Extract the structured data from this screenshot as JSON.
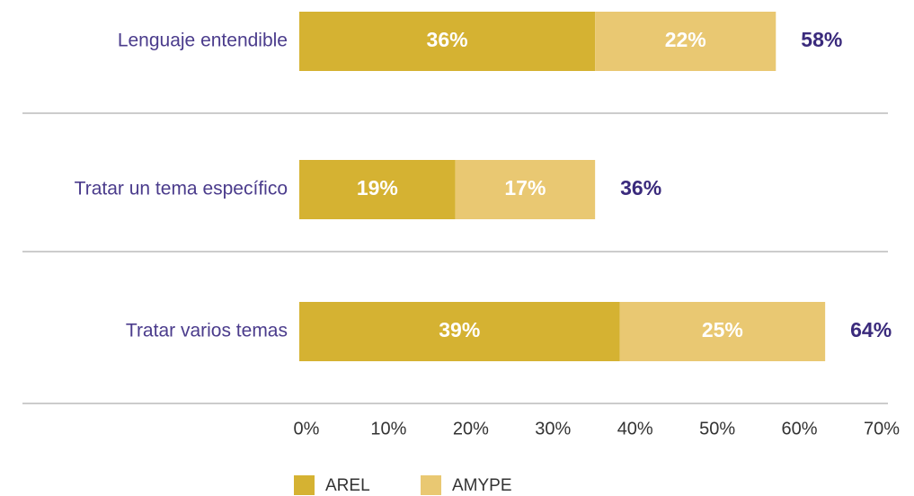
{
  "chart_data": {
    "type": "stacked-bar-horizontal",
    "categories": [
      "Lenguaje entendible",
      "Tratar un tema específico",
      "Tratar varios temas"
    ],
    "series": [
      {
        "name": "AREL",
        "color": "#d5b232",
        "values": [
          36,
          19,
          39
        ],
        "value_labels": [
          "36%",
          "19%",
          "39%"
        ]
      },
      {
        "name": "AMYPE",
        "color": "#e9c872",
        "values": [
          22,
          17,
          25
        ],
        "value_labels": [
          "22%",
          "17%",
          "25%"
        ]
      }
    ],
    "totals": {
      "values": [
        58,
        36,
        64
      ],
      "value_labels": [
        "58%",
        "36%",
        "64%"
      ]
    },
    "xlim": [
      0,
      70
    ],
    "xticks": [
      {
        "value": 0,
        "label": "0%"
      },
      {
        "value": 10,
        "label": "10%"
      },
      {
        "value": 20,
        "label": "20%"
      },
      {
        "value": 30,
        "label": "30%"
      },
      {
        "value": 40,
        "label": "40%"
      },
      {
        "value": 50,
        "label": "50%"
      },
      {
        "value": 60,
        "label": "60%"
      },
      {
        "value": 70,
        "label": "70%"
      }
    ],
    "legend": "bottom"
  }
}
